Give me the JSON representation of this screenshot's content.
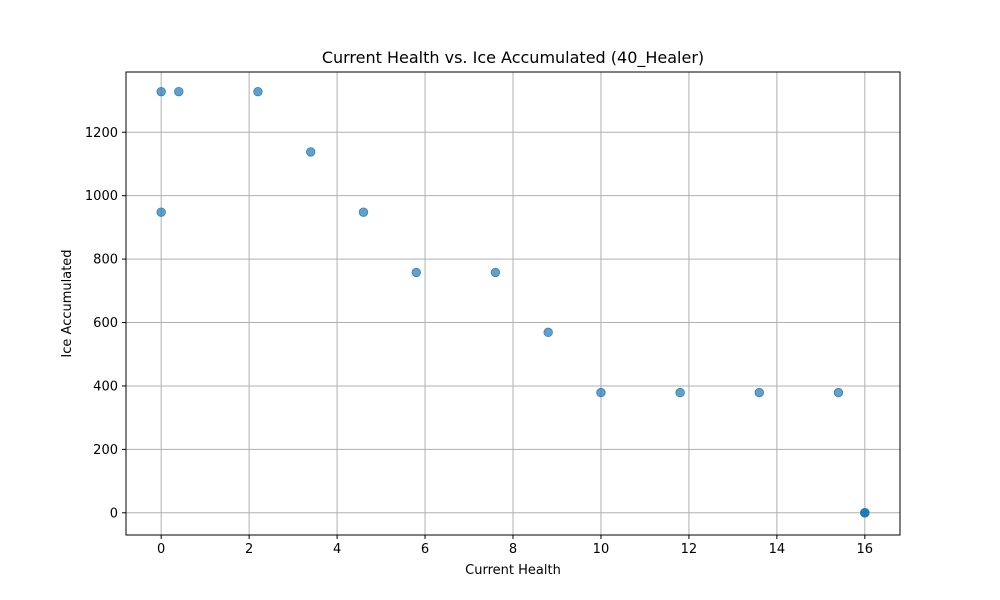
{
  "chart_data": {
    "type": "scatter",
    "title": "Current Health vs. Ice Accumulated (40_Healer)",
    "xlabel": "Current Health",
    "ylabel": "Ice Accumulated",
    "xlim": [
      -0.8,
      16.8
    ],
    "ylim": [
      -70,
      1390
    ],
    "xticks": [
      0,
      2,
      4,
      6,
      8,
      10,
      12,
      14,
      16
    ],
    "yticks": [
      0,
      200,
      400,
      600,
      800,
      1000,
      1200
    ],
    "grid": true,
    "point_color": "#1f77b4",
    "point_opacity": 0.7,
    "points": [
      {
        "x": 0.0,
        "y": 1328
      },
      {
        "x": 0.4,
        "y": 1328
      },
      {
        "x": 2.2,
        "y": 1328
      },
      {
        "x": 3.4,
        "y": 1138
      },
      {
        "x": 0.0,
        "y": 948
      },
      {
        "x": 4.6,
        "y": 948
      },
      {
        "x": 5.8,
        "y": 758
      },
      {
        "x": 7.6,
        "y": 758
      },
      {
        "x": 8.8,
        "y": 569
      },
      {
        "x": 10.0,
        "y": 379
      },
      {
        "x": 11.8,
        "y": 379
      },
      {
        "x": 13.6,
        "y": 379
      },
      {
        "x": 15.4,
        "y": 379
      },
      {
        "x": 16.0,
        "y": 0
      },
      {
        "x": 16.0,
        "y": 0
      },
      {
        "x": 16.0,
        "y": 0
      }
    ]
  }
}
